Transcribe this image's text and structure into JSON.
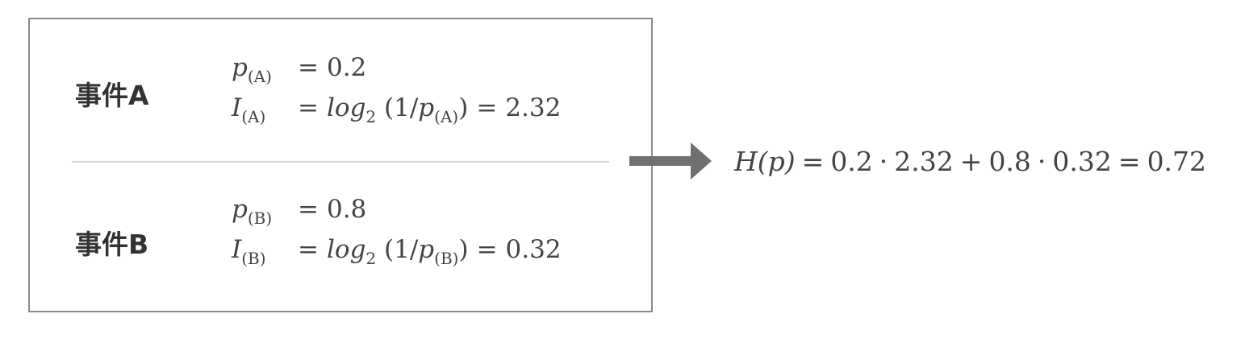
{
  "event_a": {
    "label": "事件A",
    "p_name": "p",
    "p_sub": "(A)",
    "p_value": "0.2",
    "i_name": "I",
    "i_sub": "(A)",
    "log": "log",
    "log_base": "2",
    "i_value": "2.32"
  },
  "event_b": {
    "label": "事件B",
    "p_name": "p",
    "p_sub": "(B)",
    "p_value": "0.8",
    "i_name": "I",
    "i_sub": "(B)",
    "log": "log",
    "log_base": "2",
    "i_value": "0.32"
  },
  "entropy": {
    "lhs": "H(p)",
    "terms": [
      "0.2",
      "2.32",
      "0.8",
      "0.32"
    ],
    "result": "0.72"
  },
  "colors": {
    "box_border": "#8a8a8a",
    "divider": "#d6d6d6",
    "arrow": "#707070",
    "text": "#444444"
  },
  "icons": {
    "arrow": "right-arrow-icon"
  }
}
